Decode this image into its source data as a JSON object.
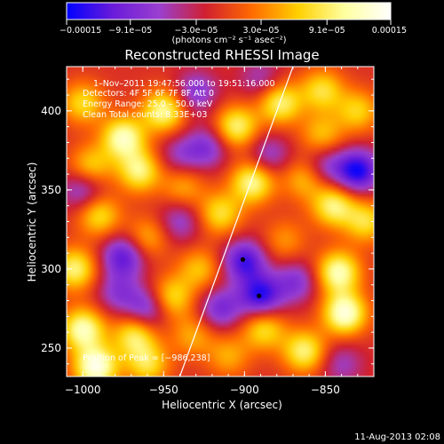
{
  "chart_data": {
    "type": "heatmap",
    "title": "Reconstructed RHESSI Image",
    "xlabel": "Heliocentric X (arcsec)",
    "ylabel": "Heliocentric Y (arcsec)",
    "xlim": [
      -1010,
      -820
    ],
    "ylim": [
      232,
      428
    ],
    "x_ticks": [
      -1000,
      -950,
      -900,
      -850
    ],
    "x_tick_labels": [
      "−1000",
      "−950",
      "−900",
      "−850"
    ],
    "y_ticks": [
      250,
      300,
      350,
      400
    ],
    "y_tick_labels": [
      "250",
      "300",
      "350",
      "400"
    ],
    "colorbar": {
      "min": -0.00015,
      "max": 0.00015,
      "tick_values": [
        -0.00015,
        -9.1e-05,
        -3e-05,
        3e-05,
        9.1e-05,
        0.00015
      ],
      "tick_labels": [
        "−0.00015",
        "−9.1e−05",
        "−3.0e−05",
        "3.0e−05",
        "9.1e−05",
        "0.00015"
      ],
      "units": "(photons cm⁻² s⁻¹ asec⁻²)",
      "colors": [
        "#0000ff",
        "#6a1bd9",
        "#9a3fd0",
        "#d02030",
        "#ff6a00",
        "#ffd000",
        "#ffffa0",
        "#ffffff"
      ]
    },
    "annotations": [
      "1–Nov–2011 19:47:56.000 to 19:51:16.000",
      "Detectors: 4F 5F 6F 7F 8F  Att 0",
      "Energy Range: 25.0 – 50.0 keV",
      "Clean     Total counts: 8.33E+03"
    ],
    "peak_label": "Position of Peak = [−986,238]",
    "peak": [
      -986,
      238
    ],
    "limb_points": [
      [
        -940,
        232
      ],
      [
        -905,
        330
      ],
      [
        -870,
        428
      ]
    ],
    "black_dots": [
      [
        -901,
        306
      ],
      [
        -891,
        283
      ]
    ],
    "blobs": [
      {
        "x": -1000,
        "y": 405,
        "v": 8.5e-05
      },
      {
        "x": -975,
        "y": 383,
        "v": 0.00013
      },
      {
        "x": -950,
        "y": 400,
        "v": 0.00012
      },
      {
        "x": -965,
        "y": 362,
        "v": 0.00011
      },
      {
        "x": -995,
        "y": 365,
        "v": 8e-05
      },
      {
        "x": -990,
        "y": 334,
        "v": 9e-05
      },
      {
        "x": -1005,
        "y": 300,
        "v": 0.00011
      },
      {
        "x": -1000,
        "y": 262,
        "v": 0.00013
      },
      {
        "x": -992,
        "y": 238,
        "v": 0.00015
      },
      {
        "x": -968,
        "y": 258,
        "v": 0.0001
      },
      {
        "x": -945,
        "y": 282,
        "v": 9e-05
      },
      {
        "x": -960,
        "y": 240,
        "v": 9e-05
      },
      {
        "x": -932,
        "y": 258,
        "v": 6e-05
      },
      {
        "x": -928,
        "y": 300,
        "v": 7e-05
      },
      {
        "x": -960,
        "y": 320,
        "v": 6.5e-05
      },
      {
        "x": -915,
        "y": 335,
        "v": 9e-05
      },
      {
        "x": -938,
        "y": 352,
        "v": 6e-05
      },
      {
        "x": -895,
        "y": 355,
        "v": 0.00012
      },
      {
        "x": -905,
        "y": 390,
        "v": 0.00011
      },
      {
        "x": -878,
        "y": 405,
        "v": 0.00011
      },
      {
        "x": -852,
        "y": 413,
        "v": 9e-05
      },
      {
        "x": -830,
        "y": 400,
        "v": 8e-05
      },
      {
        "x": -852,
        "y": 385,
        "v": 7e-05
      },
      {
        "x": -863,
        "y": 357,
        "v": 7e-05
      },
      {
        "x": -845,
        "y": 340,
        "v": 0.00011
      },
      {
        "x": -842,
        "y": 298,
        "v": 0.00013
      },
      {
        "x": -838,
        "y": 272,
        "v": 0.000145
      },
      {
        "x": -863,
        "y": 248,
        "v": 0.00011
      },
      {
        "x": -888,
        "y": 262,
        "v": 9e-05
      },
      {
        "x": -910,
        "y": 245,
        "v": 6e-05
      },
      {
        "x": -875,
        "y": 318,
        "v": 5e-05
      },
      {
        "x": -825,
        "y": 330,
        "v": 9e-05
      },
      {
        "x": -1000,
        "y": 350,
        "v": -7e-05
      },
      {
        "x": -975,
        "y": 308,
        "v": -0.0001
      },
      {
        "x": -978,
        "y": 285,
        "v": -6e-05
      },
      {
        "x": -940,
        "y": 330,
        "v": -6e-05
      },
      {
        "x": -960,
        "y": 275,
        "v": -8e-05
      },
      {
        "x": -900,
        "y": 305,
        "v": -0.00011
      },
      {
        "x": -890,
        "y": 283,
        "v": -0.00012
      },
      {
        "x": -868,
        "y": 292,
        "v": -7e-05
      },
      {
        "x": -830,
        "y": 362,
        "v": -0.00013
      },
      {
        "x": -850,
        "y": 365,
        "v": -6e-05
      },
      {
        "x": -885,
        "y": 372,
        "v": -6e-05
      },
      {
        "x": -923,
        "y": 377,
        "v": -7e-05
      },
      {
        "x": -930,
        "y": 412,
        "v": -7e-05
      },
      {
        "x": -890,
        "y": 420,
        "v": -5e-05
      },
      {
        "x": -840,
        "y": 240,
        "v": -5e-05
      },
      {
        "x": -915,
        "y": 275,
        "v": -8e-05
      },
      {
        "x": -940,
        "y": 372,
        "v": -5e-05
      }
    ]
  },
  "footer": {
    "date": "11-Aug-2013 02:08"
  }
}
